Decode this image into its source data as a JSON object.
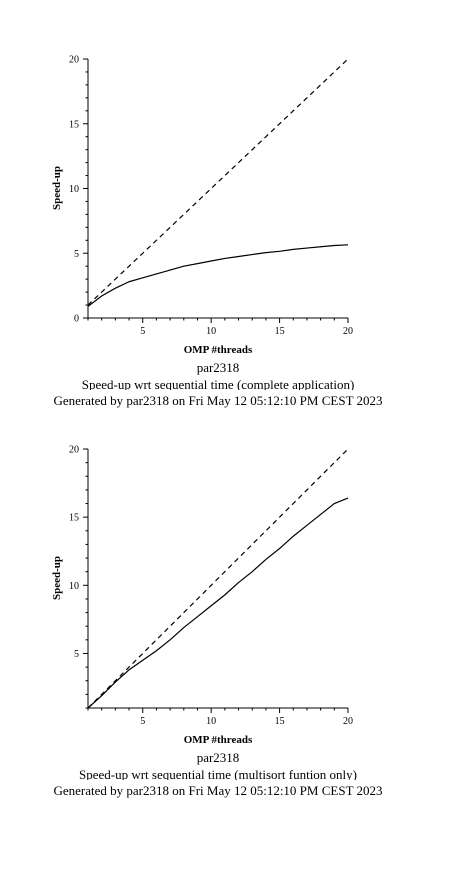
{
  "chart_data": [
    {
      "type": "line",
      "xlabel": "OMP #threads",
      "ylabel": "Speed-up",
      "xlim": [
        1,
        20
      ],
      "ylim": [
        0,
        20
      ],
      "xticks": [
        5,
        10,
        15,
        20
      ],
      "yticks": [
        0,
        5,
        10,
        15,
        20
      ],
      "series": [
        {
          "style": "solid",
          "x": [
            1,
            2,
            3,
            4,
            5,
            6,
            7,
            8,
            9,
            10,
            11,
            12,
            13,
            14,
            15,
            16,
            17,
            18,
            19,
            20
          ],
          "y": [
            0.9,
            1.7,
            2.3,
            2.8,
            3.1,
            3.4,
            3.7,
            4.0,
            4.2,
            4.4,
            4.6,
            4.75,
            4.9,
            5.05,
            5.15,
            5.3,
            5.4,
            5.5,
            5.6,
            5.65
          ]
        },
        {
          "style": "dashed",
          "x": [
            1,
            20
          ],
          "y": [
            1,
            20
          ]
        }
      ],
      "caption": {
        "line1": "par2318",
        "line2": "Speed-up wrt sequential time (complete application)",
        "line3": "Generated by par2318 on Fri May 12 05:12:10 PM CEST 2023"
      }
    },
    {
      "type": "line",
      "xlabel": "OMP #threads",
      "ylabel": "Speed-up",
      "xlim": [
        1,
        20
      ],
      "ylim": [
        1,
        20
      ],
      "xticks": [
        5,
        10,
        15,
        20
      ],
      "yticks": [
        5,
        10,
        15,
        20
      ],
      "series": [
        {
          "style": "solid",
          "x": [
            1,
            2,
            3,
            4,
            5,
            6,
            7,
            8,
            9,
            10,
            11,
            12,
            13,
            14,
            15,
            16,
            17,
            18,
            19,
            20
          ],
          "y": [
            1.0,
            1.9,
            2.9,
            3.8,
            4.5,
            5.2,
            6.0,
            6.9,
            7.7,
            8.5,
            9.3,
            10.2,
            11.0,
            11.9,
            12.7,
            13.6,
            14.4,
            15.2,
            16.0,
            16.4
          ]
        },
        {
          "style": "dashed",
          "x": [
            1,
            20
          ],
          "y": [
            1,
            20
          ]
        }
      ],
      "caption": {
        "line1": "par2318",
        "line2": "Speed-up wrt sequential time (multisort funtion only)",
        "line3": "Generated by par2318 on Fri May 12 05:12:10 PM CEST 2023"
      }
    }
  ]
}
